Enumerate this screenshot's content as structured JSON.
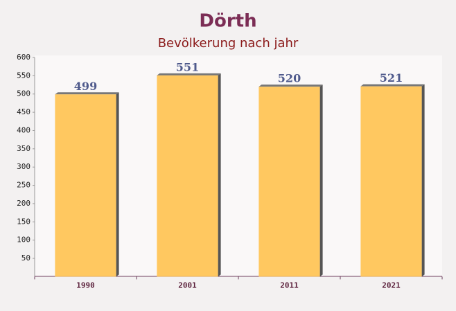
{
  "chart_data": {
    "type": "bar",
    "title": "Dörth",
    "subtitle": "Bevölkerung nach jahr",
    "categories": [
      "1990",
      "2001",
      "2011",
      "2021"
    ],
    "values": [
      499,
      551,
      520,
      521
    ],
    "color": "#ffc24f",
    "ylim": [
      0,
      600
    ],
    "yticks": [
      50,
      100,
      150,
      200,
      250,
      300,
      350,
      400,
      450,
      500,
      550,
      600
    ],
    "grid": false
  }
}
